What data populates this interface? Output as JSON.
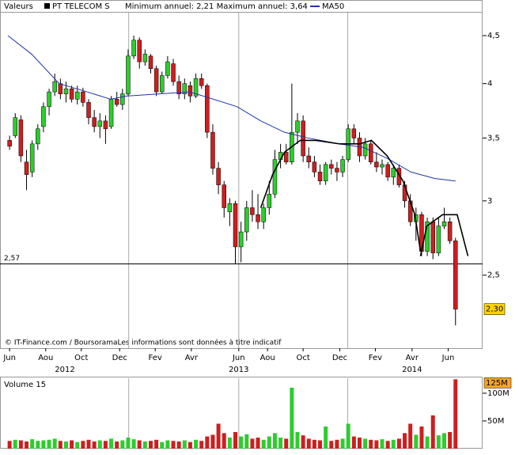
{
  "chart_data": {
    "type": "candlestick",
    "header": {
      "label": "Valeurs",
      "symbol": "PT TELECOM  S",
      "range_text": "Minimum annuel: 2,21 Maximum annuel: 3,64",
      "ma_name": "MA50"
    },
    "footnote": "© IT-Finance.com / BoursoramaLes informations sont données à titre indicatif",
    "up_color": "#2ecc2e",
    "down_color": "#cc1f1f",
    "log_y": true,
    "ylim": [
      2.09,
      4.77
    ],
    "yticks": [
      {
        "value": 4.5,
        "label": "4,5"
      },
      4,
      {
        "value": 3.5,
        "label": "3,5"
      },
      3,
      {
        "value": 2.5,
        "label": "2,5"
      }
    ],
    "xlim": [
      -1.7,
      83.8
    ],
    "xticks": [
      {
        "value": 0,
        "label": "Jun"
      },
      {
        "value": 6.4,
        "label": "Aou"
      },
      {
        "value": 12.7,
        "label": "Oct"
      },
      {
        "value": 19.5,
        "label": "Dec"
      },
      {
        "value": 25.8,
        "label": "Fev"
      },
      {
        "value": 32.2,
        "label": "Avr"
      },
      {
        "value": 40.6,
        "label": "Jun"
      },
      {
        "value": 45.7,
        "label": "Aou"
      },
      {
        "value": 52,
        "label": "Oct"
      },
      {
        "value": 58.5,
        "label": "Dec"
      },
      {
        "value": 64.8,
        "label": "Fev"
      },
      {
        "value": 71.3,
        "label": "Avr"
      },
      {
        "value": 77.7,
        "label": "Jun"
      }
    ],
    "year_ticks": [
      {
        "value": 9.8,
        "label": "2012"
      },
      {
        "value": 40.6,
        "label": "2013"
      },
      {
        "value": 71.3,
        "label": "2014"
      }
    ],
    "xgrid": [
      21.1,
      40.6,
      59.9
    ],
    "reference_line": {
      "value": 2.57,
      "label": "2,57"
    },
    "last_price": {
      "value": 2.3,
      "label": "2,30"
    },
    "candles": [
      [
        3.48,
        3.52,
        3.4,
        3.43
      ],
      [
        3.52,
        3.72,
        3.5,
        3.68
      ],
      [
        3.66,
        3.7,
        3.3,
        3.35
      ],
      [
        3.3,
        3.4,
        3.08,
        3.2
      ],
      [
        3.22,
        3.48,
        3.18,
        3.45
      ],
      [
        3.45,
        3.62,
        3.4,
        3.58
      ],
      [
        3.6,
        3.82,
        3.55,
        3.78
      ],
      [
        3.78,
        3.95,
        3.7,
        3.92
      ],
      [
        3.92,
        4.1,
        3.88,
        4.02
      ],
      [
        4.0,
        4.05,
        3.85,
        3.9
      ],
      [
        3.9,
        4.02,
        3.82,
        3.95
      ],
      [
        3.95,
        3.98,
        3.82,
        3.85
      ],
      [
        3.85,
        3.98,
        3.8,
        3.92
      ],
      [
        3.92,
        3.96,
        3.78,
        3.82
      ],
      [
        3.82,
        3.85,
        3.62,
        3.68
      ],
      [
        3.68,
        3.75,
        3.55,
        3.6
      ],
      [
        3.6,
        3.72,
        3.5,
        3.65
      ],
      [
        3.65,
        3.7,
        3.45,
        3.58
      ],
      [
        3.6,
        3.88,
        3.58,
        3.85
      ],
      [
        3.85,
        3.92,
        3.78,
        3.8
      ],
      [
        3.8,
        3.95,
        3.75,
        3.9
      ],
      [
        3.9,
        4.35,
        3.88,
        4.28
      ],
      [
        4.28,
        4.5,
        4.25,
        4.45
      ],
      [
        4.45,
        4.48,
        4.15,
        4.22
      ],
      [
        4.22,
        4.35,
        4.18,
        4.3
      ],
      [
        4.28,
        4.3,
        4.1,
        4.15
      ],
      [
        4.15,
        4.18,
        3.88,
        3.92
      ],
      [
        3.92,
        4.12,
        3.9,
        4.08
      ],
      [
        4.08,
        4.28,
        4.05,
        4.22
      ],
      [
        4.2,
        4.25,
        3.98,
        4.02
      ],
      [
        4.02,
        4.08,
        3.85,
        3.9
      ],
      [
        3.9,
        4.05,
        3.85,
        4.0
      ],
      [
        3.98,
        4.02,
        3.82,
        3.88
      ],
      [
        3.88,
        4.1,
        3.86,
        4.05
      ],
      [
        4.05,
        4.1,
        3.95,
        3.98
      ],
      [
        3.98,
        4.0,
        3.5,
        3.55
      ],
      [
        3.55,
        3.62,
        3.2,
        3.25
      ],
      [
        3.25,
        3.3,
        3.05,
        3.12
      ],
      [
        3.12,
        3.15,
        2.88,
        2.95
      ],
      [
        2.92,
        3.02,
        2.82,
        2.98
      ],
      [
        2.98,
        3.0,
        2.57,
        2.68
      ],
      [
        2.68,
        2.85,
        2.58,
        2.78
      ],
      [
        2.78,
        3.0,
        2.72,
        2.95
      ],
      [
        2.95,
        3.08,
        2.85,
        2.9
      ],
      [
        2.9,
        3.05,
        2.8,
        2.85
      ],
      [
        2.85,
        2.98,
        2.8,
        2.95
      ],
      [
        2.95,
        3.15,
        2.9,
        3.05
      ],
      [
        3.05,
        3.4,
        3.02,
        3.32
      ],
      [
        3.32,
        3.45,
        3.25,
        3.38
      ],
      [
        3.38,
        3.45,
        3.28,
        3.3
      ],
      [
        3.3,
        4.0,
        3.28,
        3.55
      ],
      [
        3.55,
        3.72,
        3.45,
        3.65
      ],
      [
        3.65,
        3.7,
        3.3,
        3.35
      ],
      [
        3.35,
        3.42,
        3.25,
        3.3
      ],
      [
        3.3,
        3.35,
        3.18,
        3.22
      ],
      [
        3.22,
        3.28,
        3.12,
        3.15
      ],
      [
        3.15,
        3.3,
        3.12,
        3.28
      ],
      [
        3.28,
        3.32,
        3.2,
        3.25
      ],
      [
        3.25,
        3.3,
        3.15,
        3.22
      ],
      [
        3.22,
        3.35,
        3.18,
        3.32
      ],
      [
        3.32,
        3.62,
        3.3,
        3.58
      ],
      [
        3.58,
        3.62,
        3.45,
        3.5
      ],
      [
        3.5,
        3.55,
        3.3,
        3.35
      ],
      [
        3.35,
        3.5,
        3.32,
        3.45
      ],
      [
        3.45,
        3.48,
        3.28,
        3.3
      ],
      [
        3.3,
        3.38,
        3.22,
        3.26
      ],
      [
        3.26,
        3.32,
        3.2,
        3.28
      ],
      [
        3.28,
        3.3,
        3.15,
        3.18
      ],
      [
        3.18,
        3.28,
        3.12,
        3.25
      ],
      [
        3.25,
        3.28,
        3.1,
        3.12
      ],
      [
        3.12,
        3.15,
        2.95,
        3.0
      ],
      [
        3.0,
        3.05,
        2.82,
        2.85
      ],
      [
        2.85,
        2.95,
        2.72,
        2.9
      ],
      [
        2.9,
        2.92,
        2.62,
        2.65
      ],
      [
        2.65,
        2.88,
        2.62,
        2.85
      ],
      [
        2.85,
        2.88,
        2.6,
        2.64
      ],
      [
        2.64,
        2.88,
        2.62,
        2.82
      ],
      [
        2.82,
        2.95,
        2.8,
        2.85
      ],
      [
        2.85,
        2.88,
        2.7,
        2.72
      ],
      [
        2.72,
        2.74,
        2.21,
        2.3
      ]
    ],
    "lines": [
      {
        "name": "MA50",
        "color": "#2233aa",
        "x": [
          -0.3,
          3.9,
          8.8,
          13.7,
          17.9,
          20.7,
          26.3,
          31.9,
          36.1,
          40.3,
          44.5,
          48.7,
          52.9,
          58.5,
          62.7,
          66.9,
          71.1,
          75.3,
          79
        ],
        "values": [
          4.5,
          4.3,
          4.0,
          3.92,
          3.85,
          3.88,
          3.9,
          3.92,
          3.85,
          3.78,
          3.65,
          3.55,
          3.5,
          3.45,
          3.42,
          3.33,
          3.22,
          3.17,
          3.15
        ]
      },
      {
        "color": "#000000",
        "x": [
          44.5,
          46.6,
          48.7,
          51.5,
          54.3,
          58.5,
          62,
          64.1,
          66.9,
          69.7,
          71.8,
          72.8,
          null,
          72.8,
          73.9,
          76.7,
          79.3,
          81.2
        ],
        "values": [
          2.95,
          3.2,
          3.38,
          3.48,
          3.48,
          3.45,
          3.45,
          3.48,
          3.35,
          3.15,
          2.9,
          2.65,
          null,
          2.62,
          2.82,
          2.9,
          2.9,
          2.62
        ]
      }
    ],
    "volume": {
      "label": "Volume 15",
      "ylim": [
        0,
        127000000
      ],
      "yticks": [
        {
          "value": 100000000,
          "label": "100M"
        },
        {
          "value": 50000000,
          "label": "50M"
        }
      ],
      "last": {
        "value": 125000000,
        "label": "125M"
      },
      "values": [
        14000000,
        16000000,
        15000000,
        13000000,
        17000000,
        14000000,
        15000000,
        16000000,
        18000000,
        14000000,
        13000000,
        15000000,
        12000000,
        14000000,
        16000000,
        13000000,
        15000000,
        14000000,
        18000000,
        13000000,
        15000000,
        20000000,
        17000000,
        15000000,
        13000000,
        14000000,
        16000000,
        12000000,
        15000000,
        14000000,
        13000000,
        15000000,
        12000000,
        16000000,
        14000000,
        22000000,
        25000000,
        45000000,
        28000000,
        20000000,
        30000000,
        22000000,
        26000000,
        18000000,
        20000000,
        16000000,
        22000000,
        28000000,
        20000000,
        18000000,
        110000000,
        30000000,
        24000000,
        18000000,
        16000000,
        15000000,
        40000000,
        14000000,
        16000000,
        18000000,
        45000000,
        22000000,
        20000000,
        18000000,
        16000000,
        15000000,
        17000000,
        14000000,
        16000000,
        18000000,
        28000000,
        45000000,
        25000000,
        40000000,
        22000000,
        60000000,
        24000000,
        28000000,
        30000000,
        125000000
      ]
    }
  }
}
